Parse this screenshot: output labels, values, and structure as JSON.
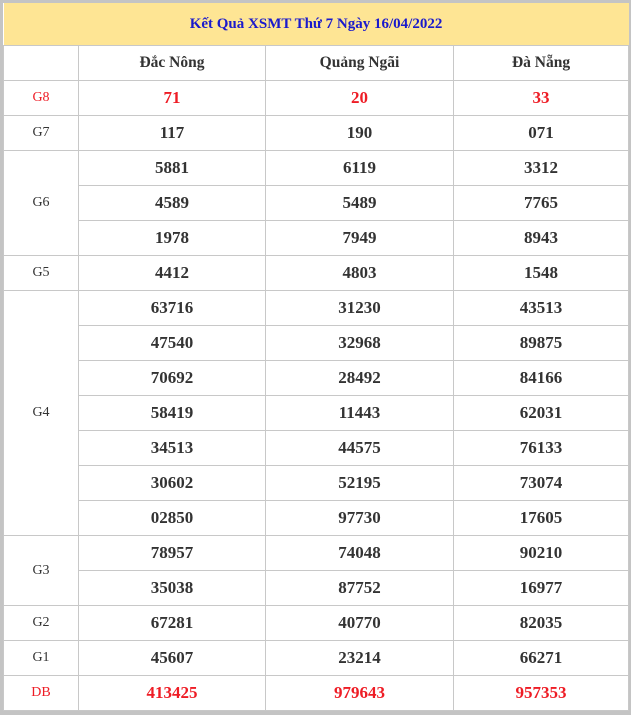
{
  "title": "Kết Quả XSMT Thứ 7 Ngày 16/04/2022",
  "columns": [
    "Đắc Nông",
    "Quảng Ngãi",
    "Đà Nẵng"
  ],
  "colors": {
    "title_bg": "#fee594",
    "title_text": "#1a1acc",
    "highlight": "#ee1c25"
  },
  "prizes": [
    {
      "label": "G8",
      "highlight": true,
      "rows": [
        [
          "71",
          "20",
          "33"
        ]
      ]
    },
    {
      "label": "G7",
      "highlight": false,
      "rows": [
        [
          "117",
          "190",
          "071"
        ]
      ]
    },
    {
      "label": "G6",
      "highlight": false,
      "rows": [
        [
          "5881",
          "6119",
          "3312"
        ],
        [
          "4589",
          "5489",
          "7765"
        ],
        [
          "1978",
          "7949",
          "8943"
        ]
      ]
    },
    {
      "label": "G5",
      "highlight": false,
      "rows": [
        [
          "4412",
          "4803",
          "1548"
        ]
      ]
    },
    {
      "label": "G4",
      "highlight": false,
      "rows": [
        [
          "63716",
          "31230",
          "43513"
        ],
        [
          "47540",
          "32968",
          "89875"
        ],
        [
          "70692",
          "28492",
          "84166"
        ],
        [
          "58419",
          "11443",
          "62031"
        ],
        [
          "34513",
          "44575",
          "76133"
        ],
        [
          "30602",
          "52195",
          "73074"
        ],
        [
          "02850",
          "97730",
          "17605"
        ]
      ]
    },
    {
      "label": "G3",
      "highlight": false,
      "rows": [
        [
          "78957",
          "74048",
          "90210"
        ],
        [
          "35038",
          "87752",
          "16977"
        ]
      ]
    },
    {
      "label": "G2",
      "highlight": false,
      "rows": [
        [
          "67281",
          "40770",
          "82035"
        ]
      ]
    },
    {
      "label": "G1",
      "highlight": false,
      "rows": [
        [
          "45607",
          "23214",
          "66271"
        ]
      ]
    },
    {
      "label": "DB",
      "highlight": true,
      "rows": [
        [
          "413425",
          "979643",
          "957353"
        ]
      ]
    }
  ]
}
